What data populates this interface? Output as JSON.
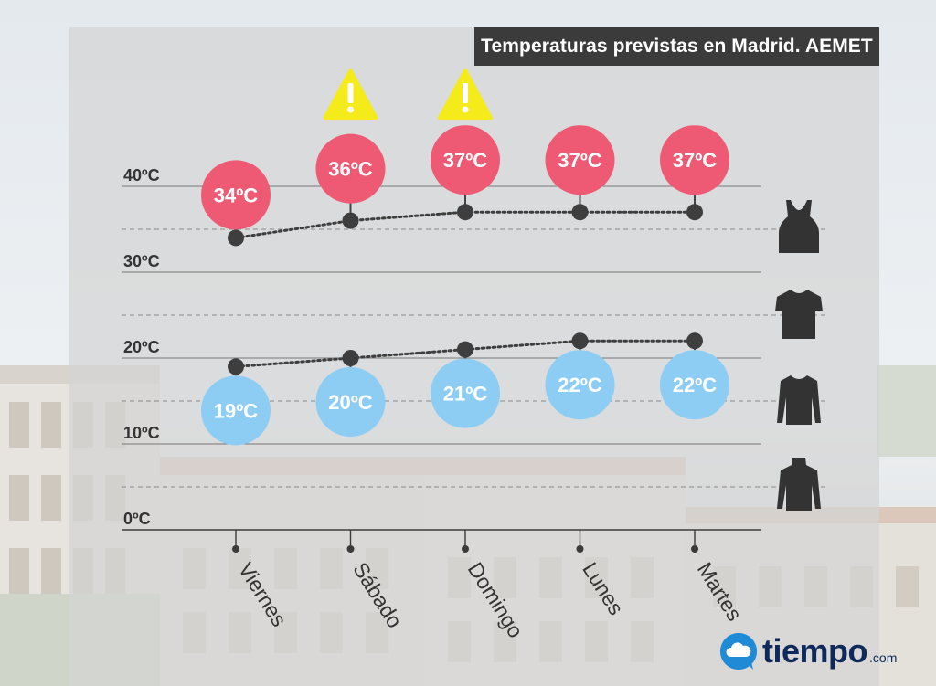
{
  "title": "Temperaturas previstas en Madrid. AEMET",
  "brand": {
    "name": "tiempo",
    "tld": ".com"
  },
  "colors": {
    "max": "#ee5a73",
    "min": "#8dcdf4",
    "warning": "#f5ea1a",
    "line": "#3e3e3e",
    "grid": "#555555"
  },
  "chart_data": {
    "type": "line",
    "title": "Temperaturas previstas en Madrid. AEMET",
    "categories": [
      "Viernes",
      "Sábado",
      "Domingo",
      "Lunes",
      "Martes"
    ],
    "y_ticks": [
      0,
      10,
      20,
      30,
      40
    ],
    "y_tick_labels": [
      "0ºC",
      "10ºC",
      "20ºC",
      "30ºC",
      "40ºC"
    ],
    "ylim": [
      0,
      40
    ],
    "grid": true,
    "dashed_guides": [
      5,
      15,
      25,
      35
    ],
    "series": [
      {
        "values": [
          34,
          36,
          37,
          37,
          37
        ],
        "labels": [
          "34ºC",
          "36ºC",
          "37ºC",
          "37ºC",
          "37ºC"
        ]
      },
      {
        "values": [
          19,
          20,
          21,
          22,
          22
        ],
        "labels": [
          "19ºC",
          "20ºC",
          "21ºC",
          "22ºC",
          "22ºC"
        ]
      }
    ],
    "warnings": [
      false,
      true,
      true,
      false,
      false
    ],
    "clothing_icons": [
      "tank-top-icon",
      "t-shirt-icon",
      "long-sleeve-shirt-icon",
      "turtleneck-icon"
    ]
  }
}
